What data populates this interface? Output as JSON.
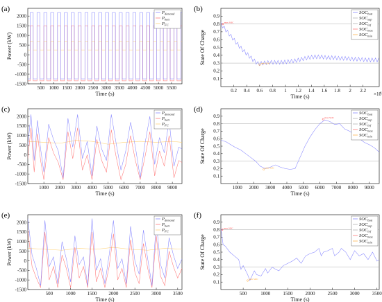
{
  "figure": {
    "panels": [
      {
        "letter": "(a)",
        "xlabel": "Time (s)",
        "ylabel": "Power (kW)",
        "legend": [
          {
            "base": "P",
            "sub": "demand",
            "color": "#7777ff"
          },
          {
            "base": "P",
            "sub": "batt",
            "color": "#ff6666"
          },
          {
            "base": "P",
            "sub": "FC",
            "color": "#ffcc66"
          }
        ]
      },
      {
        "letter": "(b)",
        "xlabel": "Time (s)",
        "ylabel": "State Of Charge",
        "x_exponent": "×10",
        "x_exponent_power": "4",
        "legend": [
          {
            "base": "SOC",
            "sub": "batt",
            "color": "#7777ff"
          },
          {
            "base": "SOC",
            "sub": "sup",
            "color": "#aaaaaa"
          },
          {
            "base": "SOC",
            "sub": "inf",
            "color": "#aaaaaa"
          },
          {
            "base": "SOC",
            "sub": "max",
            "color": "#ff6666"
          },
          {
            "base": "SOC",
            "sub": "min",
            "color": "#ffaa33"
          }
        ]
      },
      {
        "letter": "(c)",
        "xlabel": "Time (s)",
        "ylabel": "Power (kW)",
        "legend": [
          {
            "base": "P",
            "sub": "demand",
            "color": "#7777ff"
          },
          {
            "base": "P",
            "sub": "batt",
            "color": "#ff6666"
          },
          {
            "base": "P",
            "sub": "FC",
            "color": "#ffcc66"
          }
        ]
      },
      {
        "letter": "(d)",
        "xlabel": "Time (s)",
        "ylabel": "State Of Charge",
        "legend": [
          {
            "base": "SOC",
            "sub": "batt",
            "color": "#7777ff"
          },
          {
            "base": "SOC",
            "sub": "sup",
            "color": "#aaaaaa"
          },
          {
            "base": "SOC",
            "sub": "inf",
            "color": "#aaaaaa"
          },
          {
            "base": "SOC",
            "sub": "max",
            "color": "#ff6666"
          },
          {
            "base": "SOC",
            "sub": "min",
            "color": "#ffaa33"
          }
        ]
      },
      {
        "letter": "(e)",
        "xlabel": "Time (s)",
        "ylabel": "Power (kW)",
        "legend": [
          {
            "base": "P",
            "sub": "demand",
            "color": "#7777ff"
          },
          {
            "base": "P",
            "sub": "batt",
            "color": "#ff6666"
          },
          {
            "base": "P",
            "sub": "FC",
            "color": "#ffcc66"
          }
        ]
      },
      {
        "letter": "(f)",
        "xlabel": "Time (s)",
        "ylabel": "State Of Charge",
        "legend": [
          {
            "base": "SOC",
            "sub": "batt",
            "color": "#7777ff"
          },
          {
            "base": "SOC",
            "sub": "sup",
            "color": "#aaaaaa"
          },
          {
            "base": "SOC",
            "sub": "inf",
            "color": "#aaaaaa"
          },
          {
            "base": "SOC",
            "sub": "max",
            "color": "#ff6666"
          },
          {
            "base": "SOC",
            "sub": "min",
            "color": "#ffaa33"
          }
        ]
      }
    ]
  },
  "chart_data": [
    {
      "type": "line",
      "panel": "a",
      "xlim": [
        0,
        5900
      ],
      "ylim": [
        -1500,
        2400
      ],
      "xticks": [
        500,
        1000,
        1500,
        2000,
        2500,
        3000,
        3500,
        4000,
        4500,
        5000,
        5500
      ],
      "yticks": [
        -1500,
        -1000,
        -500,
        0,
        500,
        1000,
        1500,
        2000
      ],
      "signal": {
        "kind": "square",
        "period": 262,
        "high_fraction": 0.45,
        "start": 90,
        "demand_high": 2180,
        "demand_low": -1250,
        "batt_high": 1500,
        "batt_low": -1350,
        "fc_high": 700,
        "fc_low": 250
      },
      "series": [
        {
          "name": "Pdemand",
          "color": "#7777ff"
        },
        {
          "name": "Pbatt",
          "color": "#ff6666"
        },
        {
          "name": "PFC",
          "color": "#ffcc66"
        }
      ]
    },
    {
      "type": "line",
      "panel": "b",
      "xlim": [
        0,
        24500
      ],
      "ylim": [
        0,
        1
      ],
      "xticks": [
        2000,
        4000,
        6000,
        8000,
        10000,
        12000,
        14000,
        16000,
        18000,
        20000,
        22000
      ],
      "xticklabels": [
        "0.2",
        "0.4",
        "0.6",
        "0.8",
        "1",
        "1.2",
        "1.4",
        "1.6",
        "1.8",
        "2",
        "2.2"
      ],
      "yticks": [
        0.1,
        0.2,
        0.3,
        0.4,
        0.5,
        0.6,
        0.7,
        0.8,
        0.9
      ],
      "hlines": [
        {
          "y": 0.8,
          "color": "#aaaaaa"
        },
        {
          "y": 0.3,
          "color": "#aaaaaa"
        }
      ],
      "markers": [
        {
          "x": 300,
          "y": 0.8,
          "label": "max SOC",
          "color": "#ff4444"
        },
        {
          "x": 6000,
          "y": 0.28,
          "label": "min SOC",
          "color": "#ffaa33"
        }
      ],
      "series": [
        {
          "name": "SOCbatt",
          "color": "#7777ff",
          "x": [
            0,
            1000,
            2000,
            3000,
            4000,
            5000,
            5800,
            6500,
            7500,
            8500,
            9500,
            10500,
            11500,
            12500,
            13500,
            14500,
            15500,
            16500,
            17500,
            18500,
            19500,
            20500,
            21500,
            22500,
            23500,
            24500
          ],
          "y": [
            0.8,
            0.7,
            0.6,
            0.5,
            0.42,
            0.34,
            0.29,
            0.3,
            0.31,
            0.31,
            0.31,
            0.32,
            0.33,
            0.35,
            0.37,
            0.38,
            0.38,
            0.37,
            0.37,
            0.36,
            0.36,
            0.35,
            0.35,
            0.34,
            0.34,
            0.34
          ],
          "ripple": 0.025,
          "ripple_period": 520
        }
      ]
    },
    {
      "type": "line",
      "panel": "c",
      "xlim": [
        0,
        9600
      ],
      "ylim": [
        -1500,
        2400
      ],
      "xticks": [
        1000,
        2000,
        3000,
        4000,
        5000,
        6000,
        7000,
        8000,
        9000
      ],
      "yticks": [
        -1500,
        -1000,
        -500,
        0,
        500,
        1000,
        1500,
        2000
      ],
      "series": [
        {
          "name": "Pdemand",
          "color": "#7777ff",
          "x": [
            0,
            200,
            400,
            600,
            800,
            1000,
            1300,
            1600,
            1900,
            2200,
            2500,
            2800,
            3100,
            3400,
            3700,
            4000,
            4300,
            4600,
            4900,
            5200,
            5500,
            5800,
            6100,
            6400,
            6700,
            7000,
            7300,
            7600,
            7900,
            8200,
            8500,
            8800,
            9100,
            9400,
            9600
          ],
          "y": [
            500,
            2100,
            -300,
            1800,
            300,
            -900,
            1600,
            800,
            200,
            -1200,
            1900,
            400,
            2100,
            -200,
            700,
            -1100,
            1500,
            300,
            -300,
            2100,
            600,
            -800,
            200,
            1700,
            400,
            -1200,
            600,
            2000,
            -500,
            900,
            100,
            1800,
            -600,
            400,
            300
          ]
        },
        {
          "name": "Pbatt",
          "color": "#ff6666",
          "x": [
            0,
            200,
            400,
            600,
            800,
            1000,
            1300,
            1600,
            1900,
            2200,
            2500,
            2800,
            3100,
            3400,
            3700,
            4000,
            4300,
            4600,
            4900,
            5200,
            5500,
            5800,
            6100,
            6400,
            6700,
            7000,
            7300,
            7600,
            7900,
            8200,
            8500,
            8800,
            9100,
            9400,
            9600
          ],
          "y": [
            -200,
            1400,
            -900,
            1100,
            -300,
            -1300,
            900,
            100,
            -400,
            -1300,
            1200,
            -200,
            1400,
            -800,
            0,
            -1300,
            800,
            -300,
            -900,
            1300,
            -100,
            -1300,
            -500,
            1000,
            -300,
            -1300,
            -100,
            1200,
            -1100,
            200,
            -600,
            1000,
            -1200,
            -300,
            -400
          ]
        },
        {
          "name": "PFC",
          "color": "#ffcc66",
          "x": [
            0,
            1000,
            2000,
            3000,
            4000,
            5000,
            6000,
            7000,
            8000,
            9000,
            9600
          ],
          "y": [
            700,
            650,
            600,
            750,
            700,
            550,
            650,
            700,
            650,
            700,
            650
          ]
        }
      ]
    },
    {
      "type": "line",
      "panel": "d",
      "xlim": [
        0,
        9600
      ],
      "ylim": [
        0,
        1
      ],
      "xticks": [
        1000,
        2000,
        3000,
        4000,
        5000,
        6000,
        7000,
        8000,
        9000
      ],
      "yticks": [
        0.1,
        0.2,
        0.3,
        0.4,
        0.5,
        0.6,
        0.7,
        0.8,
        0.9
      ],
      "hlines": [
        {
          "y": 0.8,
          "color": "#aaaaaa"
        },
        {
          "y": 0.3,
          "color": "#aaaaaa"
        }
      ],
      "markers": [
        {
          "x": 6200,
          "y": 0.86,
          "label": "max SOC",
          "color": "#ff4444"
        },
        {
          "x": 2600,
          "y": 0.19,
          "label": "min SOC",
          "color": "#ffaa33"
        }
      ],
      "series": [
        {
          "name": "SOCbatt",
          "color": "#7777ff",
          "x": [
            0,
            300,
            600,
            900,
            1200,
            1500,
            1800,
            2100,
            2400,
            2700,
            3000,
            3300,
            3600,
            3900,
            4200,
            4500,
            4800,
            5100,
            5400,
            5700,
            6000,
            6300,
            6600,
            6900,
            7200,
            7500,
            7800,
            8100,
            8400,
            8700,
            9000,
            9300,
            9600
          ],
          "y": [
            0.58,
            0.56,
            0.52,
            0.48,
            0.45,
            0.4,
            0.35,
            0.3,
            0.23,
            0.2,
            0.22,
            0.25,
            0.22,
            0.2,
            0.19,
            0.2,
            0.35,
            0.5,
            0.62,
            0.72,
            0.8,
            0.85,
            0.83,
            0.79,
            0.8,
            0.73,
            0.7,
            0.66,
            0.6,
            0.55,
            0.52,
            0.48,
            0.42
          ]
        }
      ]
    },
    {
      "type": "line",
      "panel": "e",
      "xlim": [
        0,
        3600
      ],
      "ylim": [
        -1500,
        2400
      ],
      "xticks": [
        500,
        1000,
        1500,
        2000,
        2500,
        3000,
        3500
      ],
      "yticks": [
        -1500,
        -1000,
        -500,
        0,
        500,
        1000,
        1500,
        2000
      ],
      "series": [
        {
          "name": "Pdemand",
          "color": "#7777ff",
          "x": [
            0,
            100,
            200,
            300,
            400,
            500,
            600,
            700,
            800,
            900,
            1000,
            1100,
            1200,
            1300,
            1400,
            1500,
            1600,
            1700,
            1800,
            1900,
            2000,
            2100,
            2200,
            2300,
            2400,
            2500,
            2600,
            2700,
            2800,
            2900,
            3000,
            3100,
            3200,
            3300,
            3400,
            3500,
            3600
          ],
          "y": [
            2200,
            300,
            -400,
            -1300,
            2100,
            -300,
            200,
            -1200,
            1000,
            100,
            -1100,
            1300,
            -200,
            200,
            -1300,
            2200,
            -500,
            100,
            -1200,
            300,
            2100,
            -400,
            100,
            -1200,
            1800,
            0,
            -700,
            1600,
            100,
            -1300,
            2000,
            -200,
            -900,
            1200,
            300,
            -400,
            100
          ]
        },
        {
          "name": "Pbatt",
          "color": "#ff6666",
          "x": [
            0,
            100,
            200,
            300,
            400,
            500,
            600,
            700,
            800,
            900,
            1000,
            1100,
            1200,
            1300,
            1400,
            1500,
            1600,
            1700,
            1800,
            1900,
            2000,
            2100,
            2200,
            2300,
            2400,
            2500,
            2600,
            2700,
            2800,
            2900,
            3000,
            3100,
            3200,
            3300,
            3400,
            3500,
            3600
          ],
          "y": [
            1600,
            -300,
            -900,
            -1400,
            1500,
            -1000,
            -300,
            -1400,
            300,
            -400,
            -1400,
            700,
            -900,
            -300,
            -1400,
            1500,
            -1100,
            -400,
            -1400,
            -300,
            1400,
            -1000,
            -400,
            -1400,
            1100,
            -600,
            -1200,
            900,
            -400,
            -1400,
            1300,
            -800,
            -1300,
            500,
            -300,
            -900,
            -400
          ]
        },
        {
          "name": "PFC",
          "color": "#ffcc66",
          "x": [
            0,
            400,
            800,
            1200,
            1600,
            2000,
            2400,
            2800,
            3200,
            3600
          ],
          "y": [
            650,
            600,
            550,
            650,
            600,
            700,
            600,
            550,
            650,
            600
          ]
        }
      ]
    },
    {
      "type": "line",
      "panel": "f",
      "xlim": [
        0,
        3550
      ],
      "ylim": [
        0,
        1
      ],
      "xticks": [
        500,
        1000,
        1500,
        2000,
        2500,
        3000,
        3500
      ],
      "yticks": [
        0.1,
        0.2,
        0.3,
        0.4,
        0.5,
        0.6,
        0.7,
        0.8,
        0.9
      ],
      "hlines": [
        {
          "y": 0.8,
          "color": "#aaaaaa"
        },
        {
          "y": 0.3,
          "color": "#aaaaaa"
        }
      ],
      "markers": [
        {
          "x": 30,
          "y": 0.8,
          "label": "max SOC",
          "color": "#ff4444"
        },
        {
          "x": 600,
          "y": 0.12,
          "label": "min SOC",
          "color": "#ffaa33"
        }
      ],
      "series": [
        {
          "name": "SOCbatt",
          "color": "#7777ff",
          "x": [
            0,
            50,
            100,
            200,
            300,
            400,
            450,
            500,
            600,
            650,
            750,
            800,
            900,
            1000,
            1050,
            1150,
            1200,
            1300,
            1400,
            1500,
            1600,
            1700,
            1800,
            1900,
            2000,
            2100,
            2200,
            2250,
            2300,
            2400,
            2500,
            2550,
            2650,
            2700,
            2800,
            2900,
            3000,
            3100,
            3200,
            3300,
            3400,
            3500,
            3550
          ],
          "y": [
            0.82,
            0.6,
            0.58,
            0.5,
            0.45,
            0.4,
            0.27,
            0.32,
            0.2,
            0.12,
            0.25,
            0.2,
            0.18,
            0.28,
            0.22,
            0.3,
            0.28,
            0.25,
            0.32,
            0.35,
            0.38,
            0.42,
            0.35,
            0.45,
            0.48,
            0.5,
            0.55,
            0.45,
            0.5,
            0.52,
            0.55,
            0.45,
            0.5,
            0.55,
            0.5,
            0.4,
            0.52,
            0.45,
            0.48,
            0.4,
            0.5,
            0.38,
            0.4
          ]
        }
      ]
    }
  ]
}
